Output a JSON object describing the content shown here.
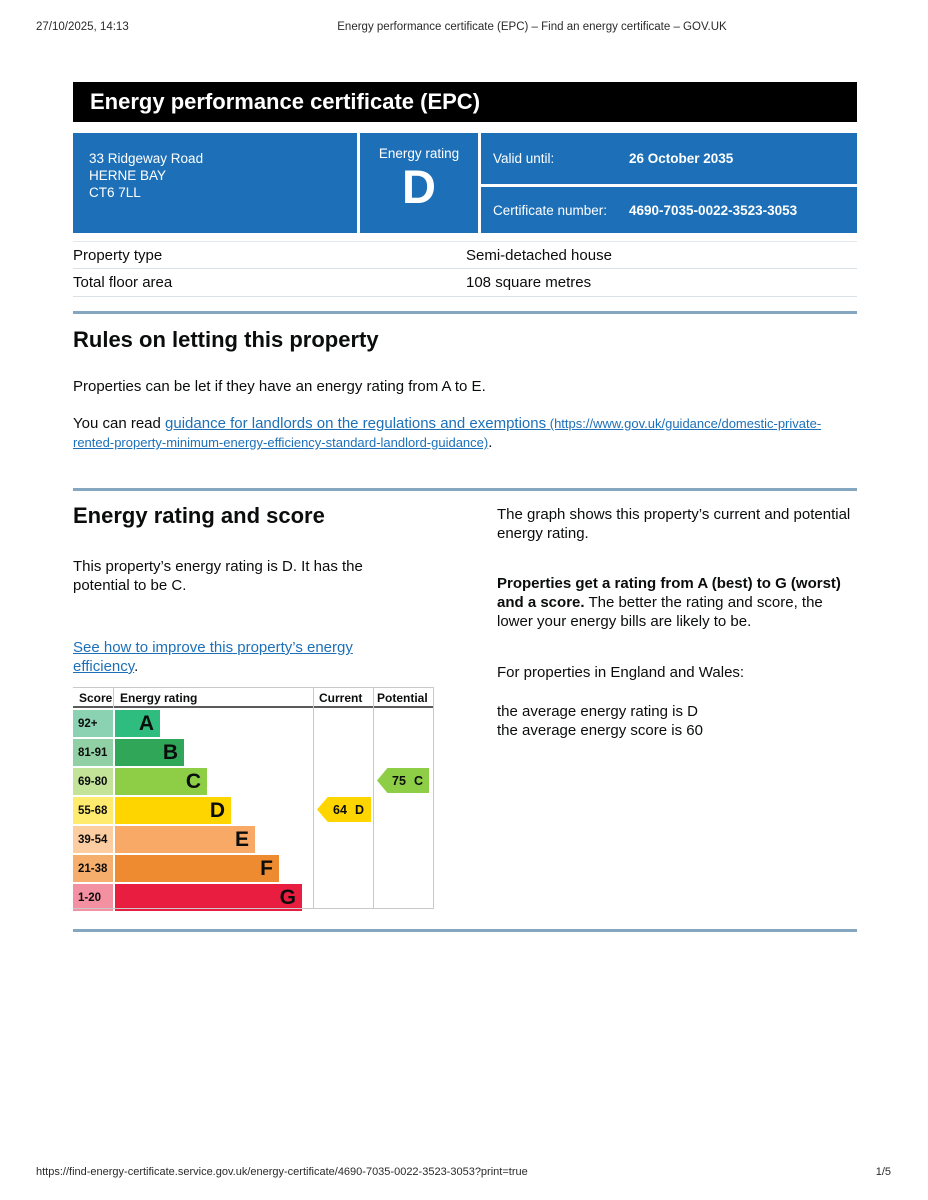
{
  "print_header": {
    "datetime": "27/10/2025, 14:13",
    "title": "Energy performance certificate (EPC) – Find an energy certificate – GOV.UK"
  },
  "banner": {
    "title": "Energy performance certificate (EPC)"
  },
  "summary": {
    "address": {
      "line1": "33 Ridgeway Road",
      "line2": "HERNE BAY",
      "line3": "CT6 7LL"
    },
    "rating_label": "Energy rating",
    "rating_value": "D",
    "valid_until_label": "Valid until:",
    "valid_until_value": "26 October 2035",
    "certificate_number_label": "Certificate number:",
    "certificate_number_value": "4690-7035-0022-3523-3053"
  },
  "property_table": {
    "rows": [
      {
        "label": "Property type",
        "value": "Semi-detached house"
      },
      {
        "label": "Total floor area",
        "value": "108 square metres"
      }
    ]
  },
  "letting": {
    "heading": "Rules on letting this property",
    "para1": "Properties can be let if they have an energy rating from A to E.",
    "para2_prefix": "You can read ",
    "link_text": "guidance for landlords on the regulations and exemptions",
    "link_url_text": " (https://www.gov.uk/guidance/domestic-private-rented-property-minimum-energy-efficiency-standard-landlord-guidance)",
    "para2_suffix": "."
  },
  "rating_section": {
    "heading": "Energy rating and score",
    "para1": "This property’s energy rating is D. It has the potential to be C.",
    "link_text": "See how to improve this property’s energy efficiency",
    "link_suffix": ".",
    "right_para1": "The graph shows this property’s current and potential energy rating.",
    "right_para2_bold": "Properties get a rating from A (best) to G (worst) and a score.",
    "right_para2_rest": " The better the rating and score, the lower your energy bills are likely to be.",
    "right_para3": "For properties in England and Wales:",
    "right_para4_line1": "the average energy rating is D",
    "right_para4_line2": "the average energy score is 60"
  },
  "chart_data": {
    "type": "bar",
    "title": "Energy rating and score graph",
    "headers": {
      "score": "Score",
      "rating": "Energy rating",
      "current": "Current",
      "potential": "Potential"
    },
    "bands": [
      {
        "score_range": "92+",
        "letter": "A",
        "bar_color": "#2ebd7e",
        "score_cell_color": "#8ad2b2"
      },
      {
        "score_range": "81-91",
        "letter": "B",
        "bar_color": "#30a658",
        "score_cell_color": "#90d0a4"
      },
      {
        "score_range": "69-80",
        "letter": "C",
        "bar_color": "#8dce46",
        "score_cell_color": "#c3e399"
      },
      {
        "score_range": "55-68",
        "letter": "D",
        "bar_color": "#ffd500",
        "score_cell_color": "#ffec6e"
      },
      {
        "score_range": "39-54",
        "letter": "E",
        "bar_color": "#f9a966",
        "score_cell_color": "#fccda0"
      },
      {
        "score_range": "21-38",
        "letter": "F",
        "bar_color": "#ee8b31",
        "score_cell_color": "#f6ae6d"
      },
      {
        "score_range": "1-20",
        "letter": "G",
        "bar_color": "#e91d40",
        "score_cell_color": "#f390a1"
      }
    ],
    "current": {
      "score": 64,
      "letter": "D",
      "band_index": 3,
      "color": "#ffd500"
    },
    "potential": {
      "score": 75,
      "letter": "C",
      "band_index": 2,
      "color": "#8dce46"
    }
  },
  "page_footer": {
    "url": "https://find-energy-certificate.service.gov.uk/energy-certificate/4690-7035-0022-3523-3053?print=true",
    "page": "1/5"
  }
}
